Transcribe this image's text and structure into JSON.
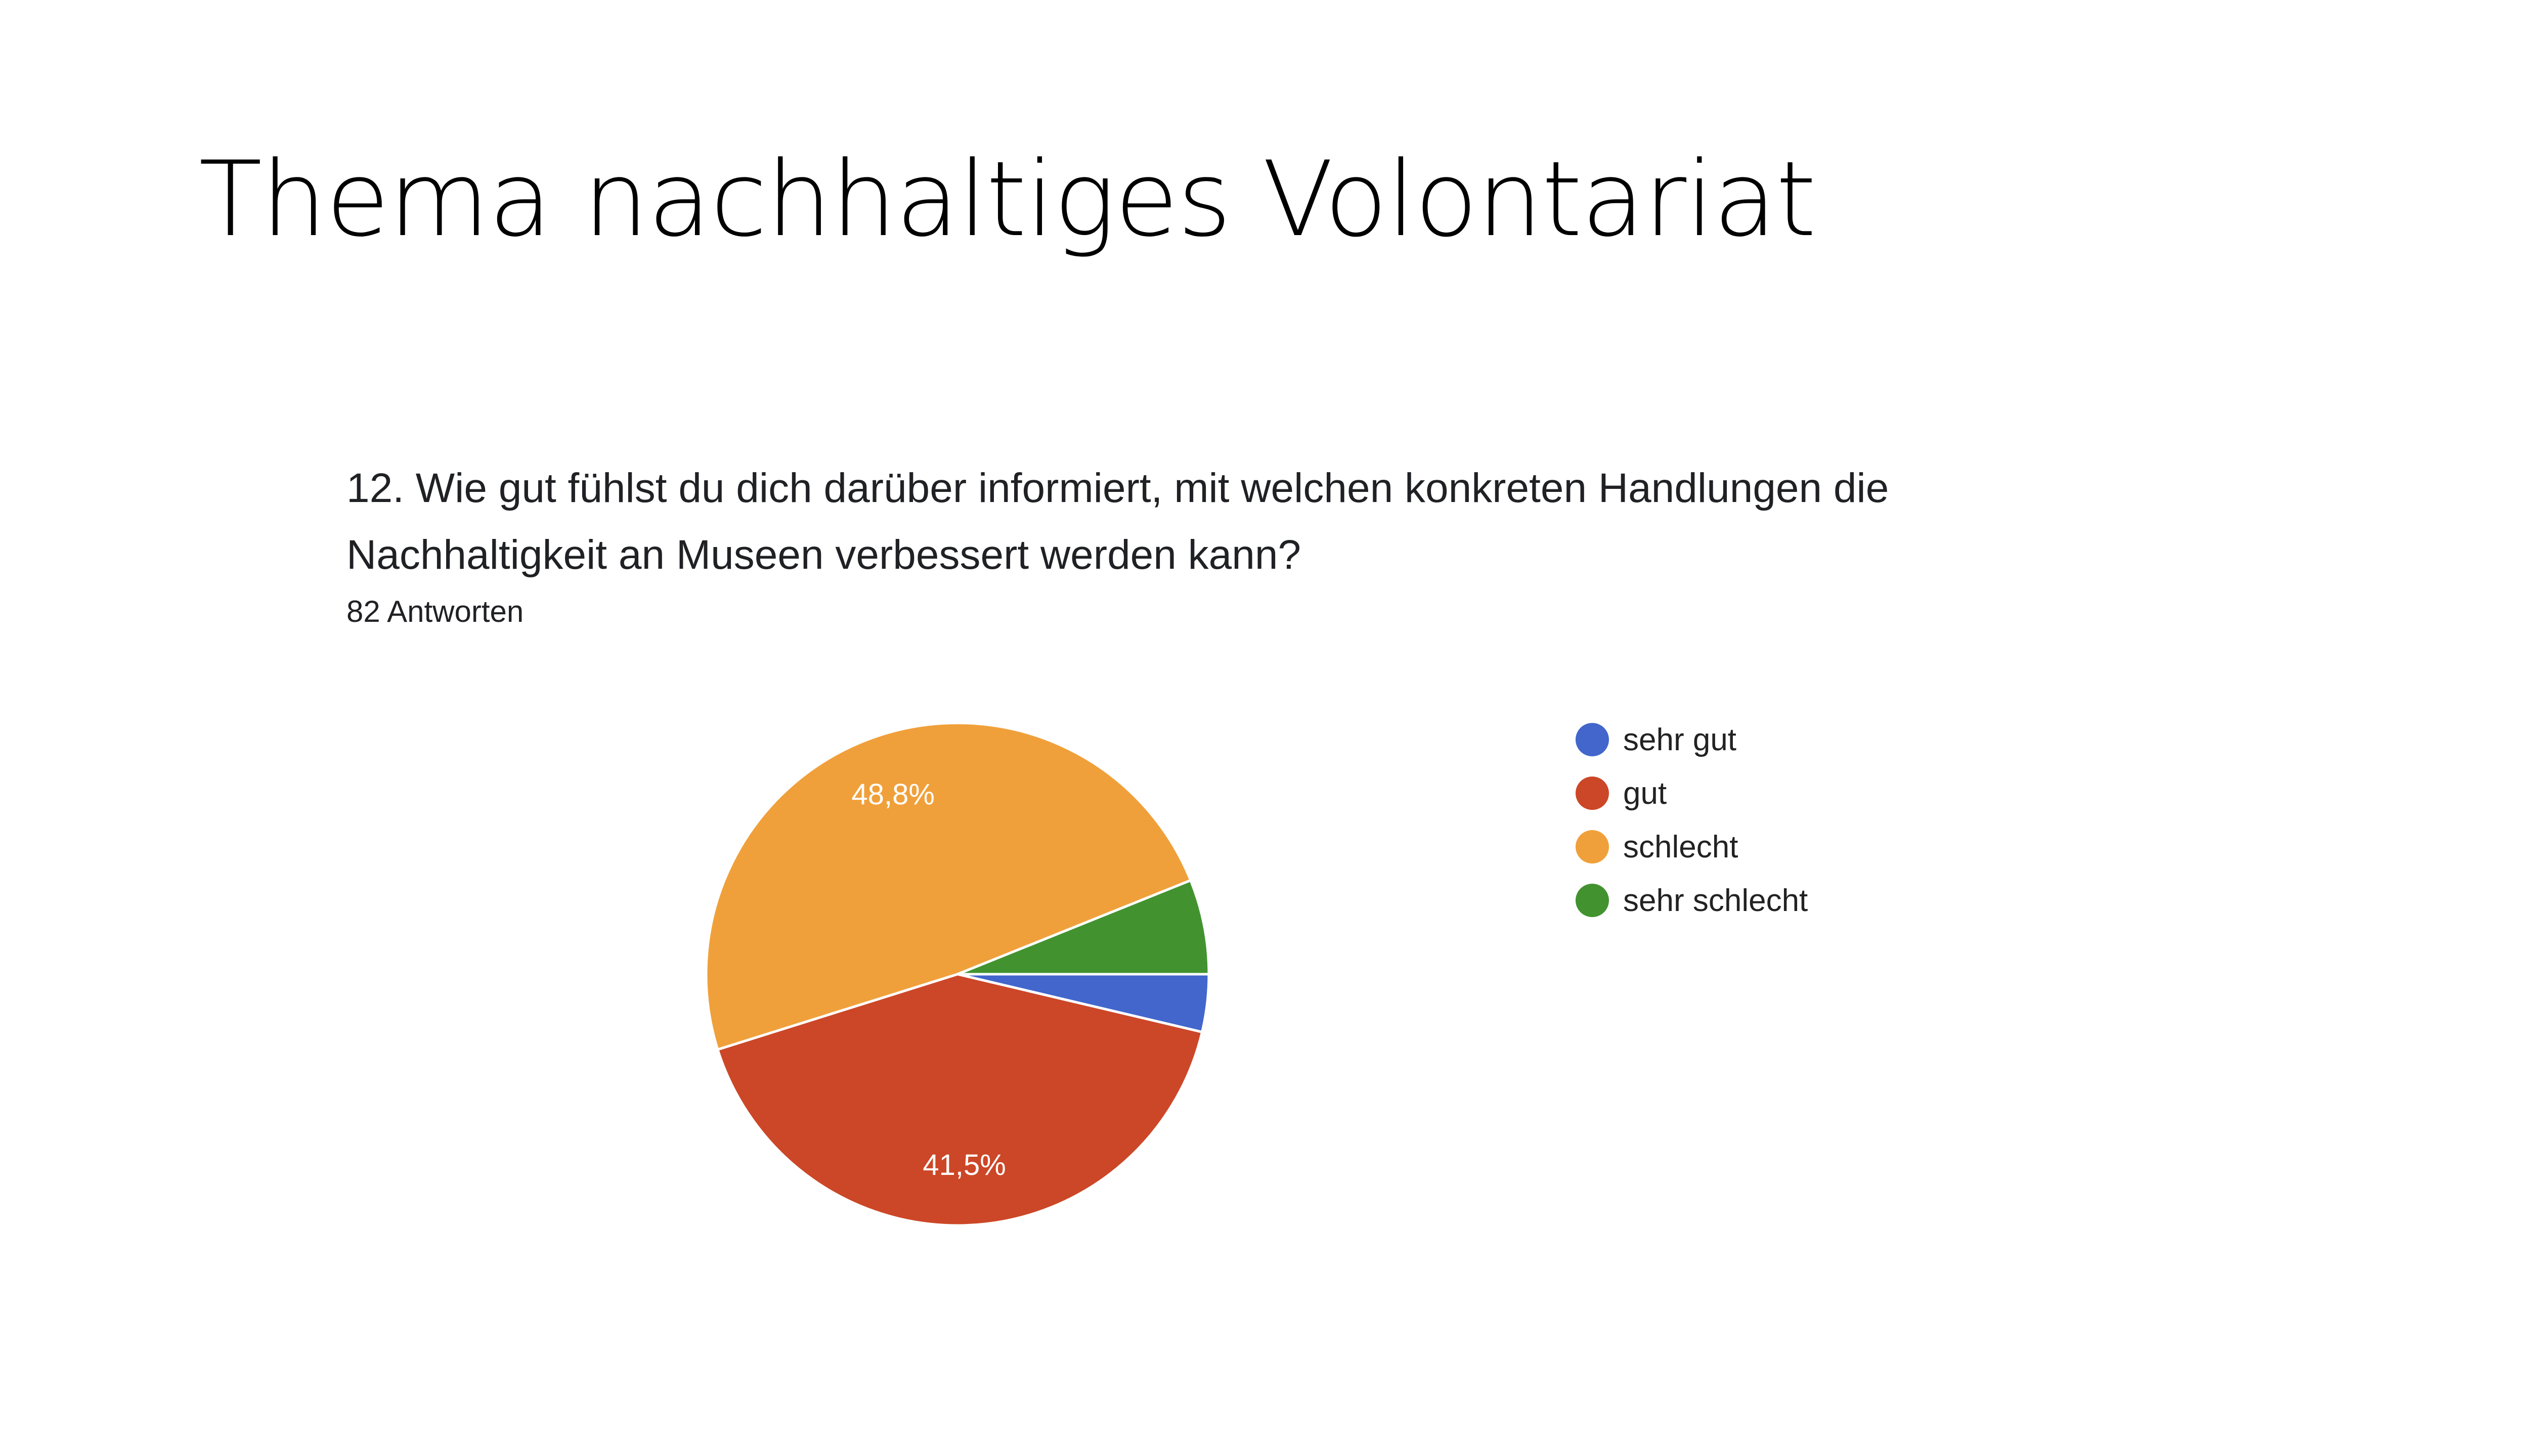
{
  "slide": {
    "title": "Thema nachhaltiges Volontariat"
  },
  "question": {
    "text": "12.  Wie gut fühlst du dich darüber informiert, mit welchen konkreten Handlungen die Nachhaltigkeit an Museen verbessert werden kann?",
    "responses": "82 Antworten"
  },
  "chart_data": {
    "type": "pie",
    "total_responses": 82,
    "categories": [
      "sehr gut",
      "gut",
      "schlecht",
      "sehr schlecht"
    ],
    "values": [
      3.7,
      41.5,
      48.8,
      6.1
    ],
    "labels": [
      "",
      "41,5%",
      "48,8%",
      ""
    ],
    "colors": [
      "#4266cb",
      "#cc4727",
      "#f0a03a",
      "#42932f"
    ],
    "start": "3 o'clock",
    "direction": "clockwise",
    "legend": "right"
  }
}
